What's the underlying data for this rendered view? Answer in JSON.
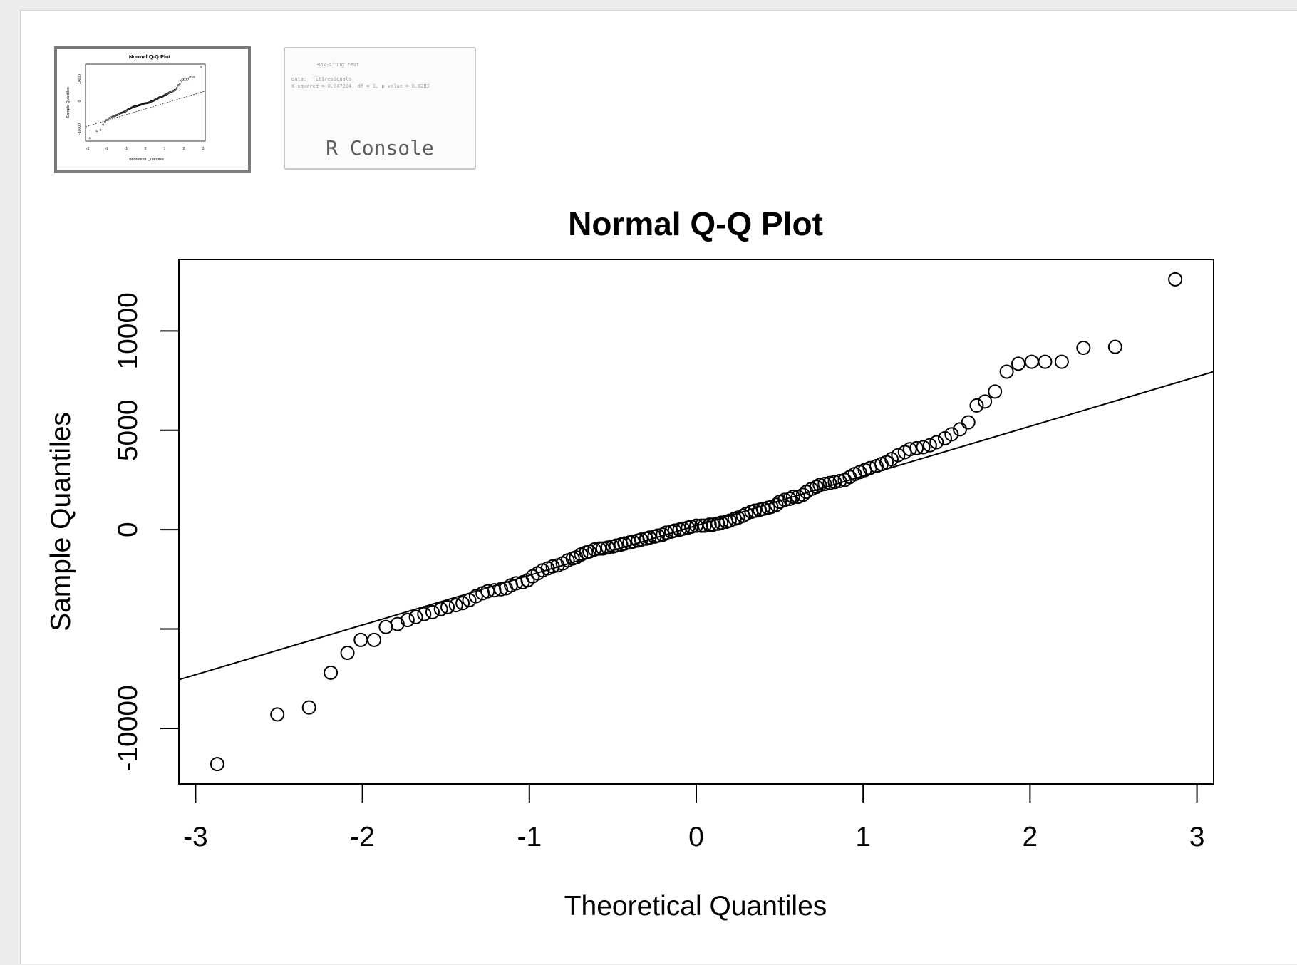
{
  "thumbnails": {
    "plot": {
      "title": "Normal Q-Q Plot",
      "xlabel": "Theoretical Quantiles",
      "ylabel": "Sample Quantiles"
    },
    "console": {
      "label": "R Console",
      "lines": [
        "Box-Ljung test",
        "",
        "data:  fit$residuals",
        "X-squared = 0.047094, df = 1, p-value = 0.8282"
      ]
    }
  },
  "chart_data": {
    "type": "scatter",
    "title": "Normal Q-Q Plot",
    "xlabel": "Theoretical Quantiles",
    "ylabel": "Sample Quantiles",
    "xlim": [
      -3.1,
      3.1
    ],
    "ylim": [
      -12800,
      13600
    ],
    "xticks": [
      "-3",
      "-2",
      "-1",
      "0",
      "1",
      "2",
      "3"
    ],
    "xtick_values": [
      -3,
      -2,
      -1,
      0,
      1,
      2,
      3
    ],
    "yticks": [
      "-10000",
      "",
      "0",
      "5000",
      "10000"
    ],
    "ytick_values": [
      -10000,
      -5000,
      0,
      5000,
      10000
    ],
    "reference_line": {
      "intercept": 200,
      "slope": 2500
    },
    "grid": false,
    "points": [
      [
        -2.87,
        -11800
      ],
      [
        -2.51,
        -9300
      ],
      [
        -2.32,
        -8950
      ],
      [
        -2.19,
        -7200
      ],
      [
        -2.09,
        -6200
      ],
      [
        -2.01,
        -5550
      ],
      [
        -1.93,
        -5550
      ],
      [
        -1.86,
        -4900
      ],
      [
        -1.79,
        -4750
      ],
      [
        -1.73,
        -4550
      ],
      [
        -1.68,
        -4400
      ],
      [
        -1.63,
        -4250
      ],
      [
        -1.58,
        -4150
      ],
      [
        -1.53,
        -4000
      ],
      [
        -1.49,
        -3900
      ],
      [
        -1.44,
        -3800
      ],
      [
        -1.4,
        -3700
      ],
      [
        -1.36,
        -3550
      ],
      [
        -1.32,
        -3350
      ],
      [
        -1.28,
        -3200
      ],
      [
        -1.25,
        -3100
      ],
      [
        -1.21,
        -3050
      ],
      [
        -1.17,
        -3000
      ],
      [
        -1.14,
        -2950
      ],
      [
        -1.11,
        -2800
      ],
      [
        -1.08,
        -2700
      ],
      [
        -1.04,
        -2650
      ],
      [
        -1.01,
        -2550
      ],
      [
        -0.98,
        -2350
      ],
      [
        -0.95,
        -2200
      ],
      [
        -0.92,
        -2050
      ],
      [
        -0.89,
        -1950
      ],
      [
        -0.86,
        -1850
      ],
      [
        -0.83,
        -1800
      ],
      [
        -0.8,
        -1700
      ],
      [
        -0.77,
        -1550
      ],
      [
        -0.74,
        -1450
      ],
      [
        -0.72,
        -1400
      ],
      [
        -0.69,
        -1250
      ],
      [
        -0.66,
        -1150
      ],
      [
        -0.64,
        -1100
      ],
      [
        -0.61,
        -1000
      ],
      [
        -0.58,
        -950
      ],
      [
        -0.56,
        -950
      ],
      [
        -0.53,
        -900
      ],
      [
        -0.5,
        -850
      ],
      [
        -0.48,
        -800
      ],
      [
        -0.45,
        -750
      ],
      [
        -0.43,
        -700
      ],
      [
        -0.4,
        -650
      ],
      [
        -0.38,
        -600
      ],
      [
        -0.35,
        -550
      ],
      [
        -0.33,
        -500
      ],
      [
        -0.3,
        -450
      ],
      [
        -0.28,
        -400
      ],
      [
        -0.25,
        -350
      ],
      [
        -0.23,
        -300
      ],
      [
        -0.2,
        -250
      ],
      [
        -0.18,
        -150
      ],
      [
        -0.15,
        -100
      ],
      [
        -0.13,
        -50
      ],
      [
        -0.1,
        0
      ],
      [
        -0.08,
        50
      ],
      [
        -0.05,
        100
      ],
      [
        -0.03,
        150
      ],
      [
        0.0,
        200
      ],
      [
        0.03,
        200
      ],
      [
        0.05,
        200
      ],
      [
        0.08,
        250
      ],
      [
        0.1,
        250
      ],
      [
        0.13,
        300
      ],
      [
        0.15,
        350
      ],
      [
        0.18,
        400
      ],
      [
        0.2,
        450
      ],
      [
        0.23,
        550
      ],
      [
        0.25,
        600
      ],
      [
        0.28,
        700
      ],
      [
        0.3,
        800
      ],
      [
        0.33,
        900
      ],
      [
        0.35,
        950
      ],
      [
        0.38,
        1000
      ],
      [
        0.4,
        1050
      ],
      [
        0.43,
        1100
      ],
      [
        0.45,
        1150
      ],
      [
        0.48,
        1250
      ],
      [
        0.5,
        1400
      ],
      [
        0.53,
        1500
      ],
      [
        0.56,
        1550
      ],
      [
        0.58,
        1650
      ],
      [
        0.61,
        1650
      ],
      [
        0.64,
        1750
      ],
      [
        0.66,
        1900
      ],
      [
        0.69,
        2050
      ],
      [
        0.72,
        2150
      ],
      [
        0.74,
        2250
      ],
      [
        0.77,
        2300
      ],
      [
        0.8,
        2350
      ],
      [
        0.83,
        2400
      ],
      [
        0.86,
        2450
      ],
      [
        0.89,
        2500
      ],
      [
        0.92,
        2650
      ],
      [
        0.95,
        2800
      ],
      [
        0.98,
        2900
      ],
      [
        1.01,
        3000
      ],
      [
        1.04,
        3100
      ],
      [
        1.08,
        3200
      ],
      [
        1.11,
        3300
      ],
      [
        1.14,
        3400
      ],
      [
        1.17,
        3550
      ],
      [
        1.21,
        3750
      ],
      [
        1.25,
        3900
      ],
      [
        1.28,
        4050
      ],
      [
        1.32,
        4100
      ],
      [
        1.36,
        4150
      ],
      [
        1.4,
        4250
      ],
      [
        1.44,
        4400
      ],
      [
        1.49,
        4600
      ],
      [
        1.53,
        4800
      ],
      [
        1.58,
        5050
      ],
      [
        1.63,
        5400
      ],
      [
        1.68,
        6250
      ],
      [
        1.73,
        6450
      ],
      [
        1.79,
        6950
      ],
      [
        1.86,
        7950
      ],
      [
        1.93,
        8350
      ],
      [
        2.01,
        8450
      ],
      [
        2.09,
        8450
      ],
      [
        2.19,
        8450
      ],
      [
        2.32,
        9150
      ],
      [
        2.51,
        9200
      ],
      [
        2.87,
        12600
      ]
    ]
  }
}
